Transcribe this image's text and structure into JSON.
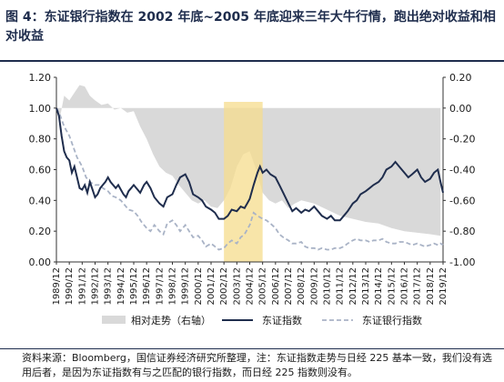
{
  "title": "图 4：东证银行指数在 2002 年底~2005 年底迎来三年大牛行情，跑出绝对收益和相对收益",
  "source": "资料来源：Bloomberg，国信证券经济研究所整理，注：东证指数走势与日经 225 基本一致，我们没有选用后者，是因为东证指数有与之匹配的银行指数，而日经 225 指数则没有。",
  "colors": {
    "title": "#1f2d4d",
    "topix_line": "#1f2d4d",
    "bank_line": "#a9b3c6",
    "relative_area": "#d9d9d9",
    "highlight": "#f6dc8c"
  },
  "chart_data": {
    "type": "line",
    "x_categories": [
      "1989/12",
      "1990/12",
      "1991/12",
      "1992/12",
      "1993/12",
      "1994/12",
      "1995/12",
      "1996/12",
      "1997/12",
      "1998/12",
      "1999/12",
      "2000/12",
      "2001/12",
      "2002/12",
      "2003/12",
      "2004/12",
      "2005/12",
      "2006/12",
      "2007/12",
      "2008/12",
      "2009/12",
      "2010/12",
      "2011/12",
      "2012/12",
      "2013/12",
      "2014/12",
      "2015/12",
      "2016/12",
      "2017/12",
      "2018/12",
      "2019/12"
    ],
    "left_axis": {
      "min": 0.0,
      "max": 1.2,
      "ticks": [
        "0.00",
        "0.20",
        "0.40",
        "0.60",
        "0.80",
        "1.00",
        "1.20"
      ]
    },
    "right_axis": {
      "min": -1.0,
      "max": 0.2,
      "ticks": [
        "-1.00",
        "-0.80",
        "-0.60",
        "-0.40",
        "-0.20",
        "0.00",
        "0.20"
      ]
    },
    "highlight_range": [
      "2002/12",
      "2005/12"
    ],
    "series": [
      {
        "name": "相对走势（右轴）",
        "type": "area",
        "axis": "right",
        "points": [
          [
            0,
            0.0
          ],
          [
            0.3,
            -0.05
          ],
          [
            0.6,
            0.08
          ],
          [
            1,
            0.05
          ],
          [
            1.4,
            0.1
          ],
          [
            1.8,
            0.15
          ],
          [
            2.2,
            0.14
          ],
          [
            2.6,
            0.08
          ],
          [
            3,
            0.05
          ],
          [
            3.5,
            0.02
          ],
          [
            4,
            0.03
          ],
          [
            4.5,
            -0.01
          ],
          [
            5,
            0.0
          ],
          [
            5.5,
            -0.03
          ],
          [
            6,
            -0.02
          ],
          [
            6.5,
            -0.12
          ],
          [
            7,
            -0.2
          ],
          [
            7.5,
            -0.3
          ],
          [
            8,
            -0.38
          ],
          [
            8.5,
            -0.42
          ],
          [
            9,
            -0.44
          ],
          [
            9.5,
            -0.5
          ],
          [
            10,
            -0.55
          ],
          [
            10.5,
            -0.6
          ],
          [
            11,
            -0.62
          ],
          [
            11.5,
            -0.6
          ],
          [
            12,
            -0.64
          ],
          [
            12.5,
            -0.65
          ],
          [
            13,
            -0.6
          ],
          [
            13.5,
            -0.52
          ],
          [
            14,
            -0.38
          ],
          [
            14.5,
            -0.3
          ],
          [
            15,
            -0.28
          ],
          [
            15.5,
            -0.4
          ],
          [
            16,
            -0.55
          ],
          [
            16.5,
            -0.6
          ],
          [
            17,
            -0.62
          ],
          [
            17.5,
            -0.6
          ],
          [
            18,
            -0.65
          ],
          [
            18.5,
            -0.62
          ],
          [
            19,
            -0.6
          ],
          [
            20,
            -0.62
          ],
          [
            21,
            -0.66
          ],
          [
            22,
            -0.7
          ],
          [
            23,
            -0.72
          ],
          [
            24,
            -0.74
          ],
          [
            25,
            -0.75
          ],
          [
            26,
            -0.78
          ],
          [
            27,
            -0.8
          ],
          [
            28,
            -0.81
          ],
          [
            29,
            -0.82
          ],
          [
            29.8,
            -0.83
          ]
        ]
      },
      {
        "name": "东证指数",
        "type": "line",
        "axis": "left",
        "points": [
          [
            0,
            1.0
          ],
          [
            0.2,
            0.95
          ],
          [
            0.4,
            0.82
          ],
          [
            0.6,
            0.72
          ],
          [
            0.8,
            0.68
          ],
          [
            1,
            0.66
          ],
          [
            1.2,
            0.58
          ],
          [
            1.4,
            0.62
          ],
          [
            1.6,
            0.55
          ],
          [
            1.8,
            0.48
          ],
          [
            2,
            0.47
          ],
          [
            2.2,
            0.5
          ],
          [
            2.4,
            0.45
          ],
          [
            2.6,
            0.52
          ],
          [
            2.8,
            0.47
          ],
          [
            3,
            0.42
          ],
          [
            3.2,
            0.44
          ],
          [
            3.4,
            0.48
          ],
          [
            3.6,
            0.5
          ],
          [
            3.8,
            0.52
          ],
          [
            4,
            0.55
          ],
          [
            4.2,
            0.52
          ],
          [
            4.4,
            0.5
          ],
          [
            4.6,
            0.48
          ],
          [
            4.8,
            0.5
          ],
          [
            5,
            0.47
          ],
          [
            5.2,
            0.44
          ],
          [
            5.4,
            0.42
          ],
          [
            5.6,
            0.46
          ],
          [
            5.8,
            0.48
          ],
          [
            6,
            0.5
          ],
          [
            6.2,
            0.48
          ],
          [
            6.5,
            0.45
          ],
          [
            6.8,
            0.5
          ],
          [
            7,
            0.52
          ],
          [
            7.3,
            0.48
          ],
          [
            7.6,
            0.42
          ],
          [
            8,
            0.38
          ],
          [
            8.3,
            0.36
          ],
          [
            8.6,
            0.42
          ],
          [
            9,
            0.44
          ],
          [
            9.3,
            0.5
          ],
          [
            9.6,
            0.55
          ],
          [
            10,
            0.57
          ],
          [
            10.3,
            0.52
          ],
          [
            10.6,
            0.44
          ],
          [
            11,
            0.42
          ],
          [
            11.3,
            0.4
          ],
          [
            11.6,
            0.36
          ],
          [
            12,
            0.34
          ],
          [
            12.3,
            0.32
          ],
          [
            12.6,
            0.28
          ],
          [
            13,
            0.28
          ],
          [
            13.3,
            0.3
          ],
          [
            13.6,
            0.34
          ],
          [
            14,
            0.33
          ],
          [
            14.3,
            0.36
          ],
          [
            14.6,
            0.35
          ],
          [
            14.8,
            0.38
          ],
          [
            15,
            0.41
          ],
          [
            15.3,
            0.5
          ],
          [
            15.6,
            0.58
          ],
          [
            15.8,
            0.62
          ],
          [
            16,
            0.58
          ],
          [
            16.3,
            0.6
          ],
          [
            16.6,
            0.57
          ],
          [
            17,
            0.55
          ],
          [
            17.3,
            0.5
          ],
          [
            17.6,
            0.45
          ],
          [
            18,
            0.38
          ],
          [
            18.3,
            0.33
          ],
          [
            18.6,
            0.35
          ],
          [
            19,
            0.32
          ],
          [
            19.3,
            0.34
          ],
          [
            19.6,
            0.33
          ],
          [
            20,
            0.36
          ],
          [
            20.3,
            0.33
          ],
          [
            20.6,
            0.3
          ],
          [
            21,
            0.28
          ],
          [
            21.3,
            0.3
          ],
          [
            21.6,
            0.27
          ],
          [
            22,
            0.27
          ],
          [
            22.3,
            0.3
          ],
          [
            22.6,
            0.33
          ],
          [
            23,
            0.38
          ],
          [
            23.3,
            0.4
          ],
          [
            23.6,
            0.44
          ],
          [
            24,
            0.46
          ],
          [
            24.3,
            0.48
          ],
          [
            24.6,
            0.5
          ],
          [
            25,
            0.52
          ],
          [
            25.3,
            0.55
          ],
          [
            25.6,
            0.6
          ],
          [
            26,
            0.62
          ],
          [
            26.3,
            0.65
          ],
          [
            26.6,
            0.62
          ],
          [
            27,
            0.58
          ],
          [
            27.3,
            0.55
          ],
          [
            27.6,
            0.57
          ],
          [
            28,
            0.6
          ],
          [
            28.3,
            0.55
          ],
          [
            28.6,
            0.52
          ],
          [
            29,
            0.54
          ],
          [
            29.3,
            0.58
          ],
          [
            29.6,
            0.6
          ],
          [
            29.8,
            0.52
          ],
          [
            30,
            0.45
          ]
        ]
      },
      {
        "name": "东证银行指数",
        "type": "line",
        "axis": "left",
        "points": [
          [
            0,
            1.0
          ],
          [
            0.3,
            0.95
          ],
          [
            0.6,
            0.88
          ],
          [
            1,
            0.82
          ],
          [
            1.3,
            0.75
          ],
          [
            1.6,
            0.68
          ],
          [
            2,
            0.62
          ],
          [
            2.3,
            0.55
          ],
          [
            2.6,
            0.52
          ],
          [
            3,
            0.5
          ],
          [
            3.3,
            0.5
          ],
          [
            3.6,
            0.48
          ],
          [
            4,
            0.46
          ],
          [
            4.3,
            0.43
          ],
          [
            4.6,
            0.42
          ],
          [
            5,
            0.4
          ],
          [
            5.3,
            0.37
          ],
          [
            5.6,
            0.34
          ],
          [
            6,
            0.33
          ],
          [
            6.3,
            0.3
          ],
          [
            6.6,
            0.26
          ],
          [
            7,
            0.22
          ],
          [
            7.3,
            0.2
          ],
          [
            7.6,
            0.24
          ],
          [
            8,
            0.2
          ],
          [
            8.3,
            0.18
          ],
          [
            8.6,
            0.25
          ],
          [
            9,
            0.27
          ],
          [
            9.3,
            0.24
          ],
          [
            9.6,
            0.2
          ],
          [
            10,
            0.24
          ],
          [
            10.3,
            0.2
          ],
          [
            10.6,
            0.16
          ],
          [
            11,
            0.17
          ],
          [
            11.3,
            0.14
          ],
          [
            11.6,
            0.1
          ],
          [
            12,
            0.12
          ],
          [
            12.3,
            0.1
          ],
          [
            12.6,
            0.08
          ],
          [
            13,
            0.09
          ],
          [
            13.3,
            0.12
          ],
          [
            13.6,
            0.14
          ],
          [
            14,
            0.12
          ],
          [
            14.3,
            0.16
          ],
          [
            14.6,
            0.18
          ],
          [
            15,
            0.24
          ],
          [
            15.3,
            0.32
          ],
          [
            15.6,
            0.3
          ],
          [
            16,
            0.28
          ],
          [
            16.3,
            0.27
          ],
          [
            16.6,
            0.25
          ],
          [
            17,
            0.22
          ],
          [
            17.3,
            0.18
          ],
          [
            17.6,
            0.16
          ],
          [
            18,
            0.14
          ],
          [
            18.3,
            0.12
          ],
          [
            18.6,
            0.12
          ],
          [
            19,
            0.13
          ],
          [
            19.3,
            0.1
          ],
          [
            19.6,
            0.09
          ],
          [
            20,
            0.09
          ],
          [
            20.3,
            0.08
          ],
          [
            20.6,
            0.09
          ],
          [
            21,
            0.08
          ],
          [
            21.3,
            0.08
          ],
          [
            21.6,
            0.09
          ],
          [
            22,
            0.09
          ],
          [
            22.3,
            0.1
          ],
          [
            22.6,
            0.12
          ],
          [
            23,
            0.14
          ],
          [
            23.3,
            0.15
          ],
          [
            23.6,
            0.14
          ],
          [
            24,
            0.14
          ],
          [
            24.3,
            0.13
          ],
          [
            24.6,
            0.14
          ],
          [
            25,
            0.14
          ],
          [
            25.3,
            0.15
          ],
          [
            25.6,
            0.13
          ],
          [
            26,
            0.12
          ],
          [
            26.3,
            0.12
          ],
          [
            26.6,
            0.13
          ],
          [
            27,
            0.13
          ],
          [
            27.3,
            0.12
          ],
          [
            27.6,
            0.11
          ],
          [
            28,
            0.12
          ],
          [
            28.3,
            0.11
          ],
          [
            28.6,
            0.1
          ],
          [
            29,
            0.11
          ],
          [
            29.3,
            0.12
          ],
          [
            29.6,
            0.11
          ],
          [
            29.8,
            0.12
          ],
          [
            30,
            0.11
          ]
        ]
      }
    ]
  }
}
